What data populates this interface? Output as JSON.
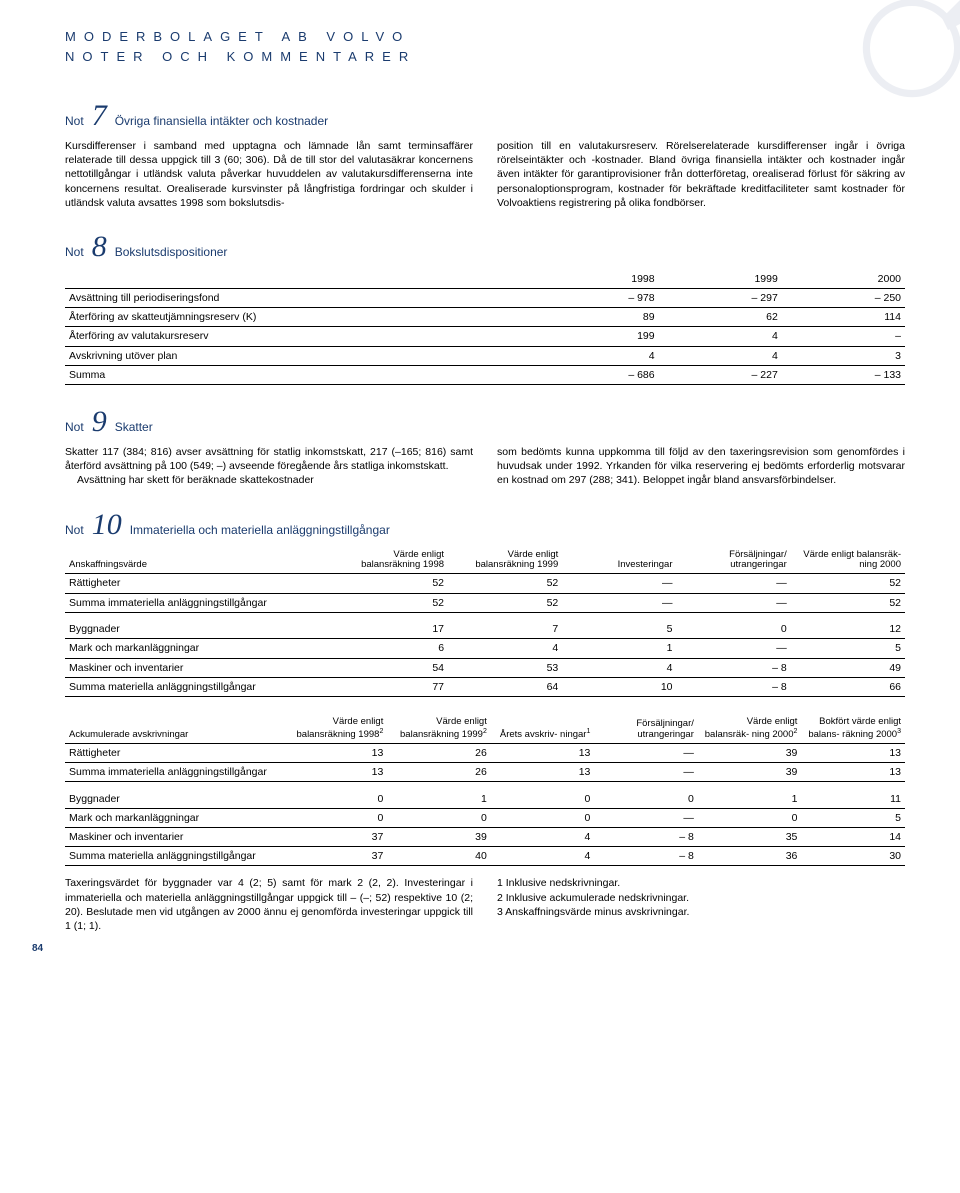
{
  "header": {
    "line1": "MODERBOLAGET AB VOLVO",
    "line2": "NOTER OCH KOMMENTARER"
  },
  "note7": {
    "prefix": "Not",
    "num": "7",
    "title": "Övriga finansiella intäkter och kostnader",
    "col1": "Kursdifferenser i samband med upptagna och lämnade lån samt terminsaffärer relaterade till dessa uppgick till 3 (60; 306). Då de till stor del valutasäkrar koncernens nettotillgångar i utländsk valuta påverkar huvuddelen av valutakursdifferenserna inte koncernens resultat. Orealiserade kursvinster på långfristiga fordringar och skulder i utländsk valuta avsattes 1998 som bokslutsdis-",
    "col2": "position till en valutakursreserv. Rörelserelaterade kursdifferenser ingår i övriga rörelseintäkter och -kostnader. Bland övriga finansiella intäkter och kostnader ingår även intäkter för garantiprovisioner från dotterföretag, orealiserad förlust för säkring av personaloptionsprogram, kostnader för bekräftade kreditfaciliteter samt kostnader för Volvoaktiens registrering på olika fondbörser."
  },
  "note8": {
    "prefix": "Not",
    "num": "8",
    "title": "Bokslutsdispositioner",
    "columns": [
      "",
      "1998",
      "1999",
      "2000"
    ],
    "rows": [
      [
        "Avsättning till periodiseringsfond",
        "– 978",
        "– 297",
        "– 250"
      ],
      [
        "Återföring av skatteutjämningsreserv (K)",
        "89",
        "62",
        "114"
      ],
      [
        "Återföring av valutakursreserv",
        "199",
        "4",
        "–"
      ],
      [
        "Avskrivning utöver plan",
        "4",
        "4",
        "3"
      ],
      [
        "Summa",
        "– 686",
        "– 227",
        "– 133"
      ]
    ]
  },
  "note9": {
    "prefix": "Not",
    "num": "9",
    "title": "Skatter",
    "col1a": "Skatter 117 (384; 816) avser avsättning för statlig inkomstskatt, 217 (–165; 816) samt återförd avsättning på 100 (549; –) avseende föregående års statliga inkomstskatt.",
    "col1b": "Avsättning har skett för beräknade skattekostnader",
    "col2a": "som bedömts kunna uppkomma till följd av den taxeringsrevision som genomfördes i huvudsak under 1992. Yrkanden för vilka reservering ej bedömts erforderlig motsvarar en kostnad om 297 (288; 341). Beloppet ingår bland ansvarsförbindelser."
  },
  "note10": {
    "prefix": "Not",
    "num": "10",
    "title": "Immateriella och materiella anläggningstillgångar",
    "tableA": {
      "head": [
        "Anskaffningsvärde",
        "Värde enligt balansräkning 1998",
        "Värde enligt balansräkning 1999",
        "Investeringar",
        "Försäljningar/ utrangeringar",
        "Värde enligt balansräk- ning 2000"
      ],
      "rows": [
        [
          "Rättigheter",
          "52",
          "52",
          "—",
          "—",
          "52"
        ],
        [
          "Summa immateriella anläggningstillgångar",
          "52",
          "52",
          "—",
          "—",
          "52"
        ],
        [
          "GAP"
        ],
        [
          "Byggnader",
          "17",
          "7",
          "5",
          "0",
          "12"
        ],
        [
          "Mark och markanläggningar",
          "6",
          "4",
          "1",
          "—",
          "5"
        ],
        [
          "Maskiner och inventarier",
          "54",
          "53",
          "4",
          "– 8",
          "49"
        ],
        [
          "Summa materiella anläggningstillgångar",
          "77",
          "64",
          "10",
          "– 8",
          "66"
        ]
      ]
    },
    "tableB": {
      "head": [
        "Ackumulerade avskrivningar",
        "Värde enligt balansräkning 1998",
        "Värde enligt balansräkning 1999",
        "Årets avskriv- ningar",
        "Försäljningar/ utrangeringar",
        "Värde enligt balansräk- ning 2000",
        "Bokfört värde enligt balans- räkning 2000"
      ],
      "sup": [
        "",
        "2",
        "2",
        "1",
        "",
        "2",
        "3"
      ],
      "rows": [
        [
          "Rättigheter",
          "13",
          "26",
          "13",
          "—",
          "39",
          "13"
        ],
        [
          "Summa immateriella anläggningstillgångar",
          "13",
          "26",
          "13",
          "—",
          "39",
          "13"
        ],
        [
          "GAP"
        ],
        [
          "Byggnader",
          "0",
          "1",
          "0",
          "0",
          "1",
          "11"
        ],
        [
          "Mark och markanläggningar",
          "0",
          "0",
          "0",
          "—",
          "0",
          "5"
        ],
        [
          "Maskiner och inventarier",
          "37",
          "39",
          "4",
          "– 8",
          "35",
          "14"
        ],
        [
          "Summa materiella anläggningstillgångar",
          "37",
          "40",
          "4",
          "– 8",
          "36",
          "30"
        ]
      ]
    },
    "foot_left": "Taxeringsvärdet för byggnader var 4 (2; 5) samt för mark 2 (2, 2). Investeringar i immateriella och materiella anläggningstillgångar uppgick till – (–; 52) respektive 10 (2; 20). Beslutade men vid utgången av 2000 ännu ej genomförda investeringar uppgick till 1 (1; 1).",
    "foot_right": [
      "1  Inklusive nedskrivningar.",
      "2  Inklusive ackumulerade nedskrivningar.",
      "3  Anskaffningsvärde minus avskrivningar."
    ]
  },
  "page_num": "84"
}
